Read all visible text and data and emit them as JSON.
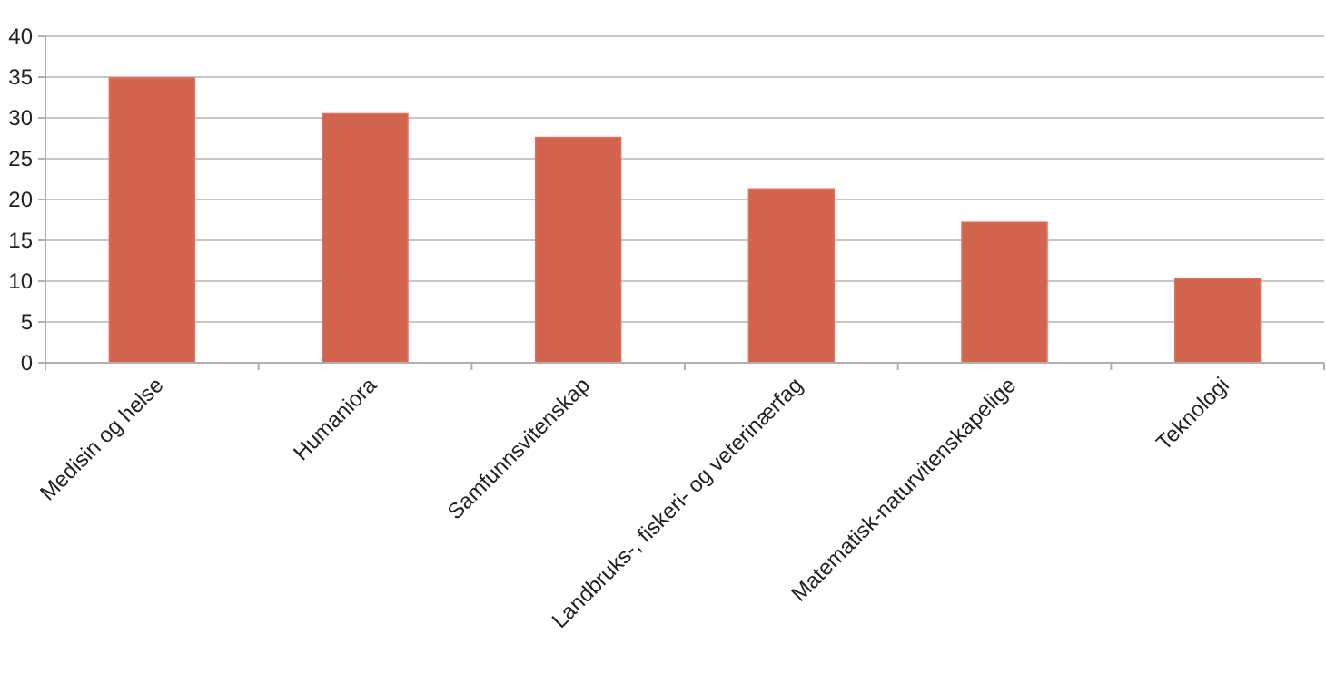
{
  "chart_data": {
    "type": "bar",
    "categories": [
      "Medisin og helse",
      "Humaniora",
      "Samfunnsvitenskap",
      "Landbruks-, fiskeri- og veterinærfag",
      "Matematisk-naturvitenskapelige",
      "Teknologi"
    ],
    "values": [
      34.9,
      30.5,
      27.6,
      21.3,
      17.2,
      10.3
    ],
    "color": "#d2634c",
    "ylim": [
      0,
      40
    ],
    "yticks": [
      0,
      5,
      10,
      15,
      20,
      25,
      30,
      35,
      40
    ],
    "grid": "y"
  }
}
